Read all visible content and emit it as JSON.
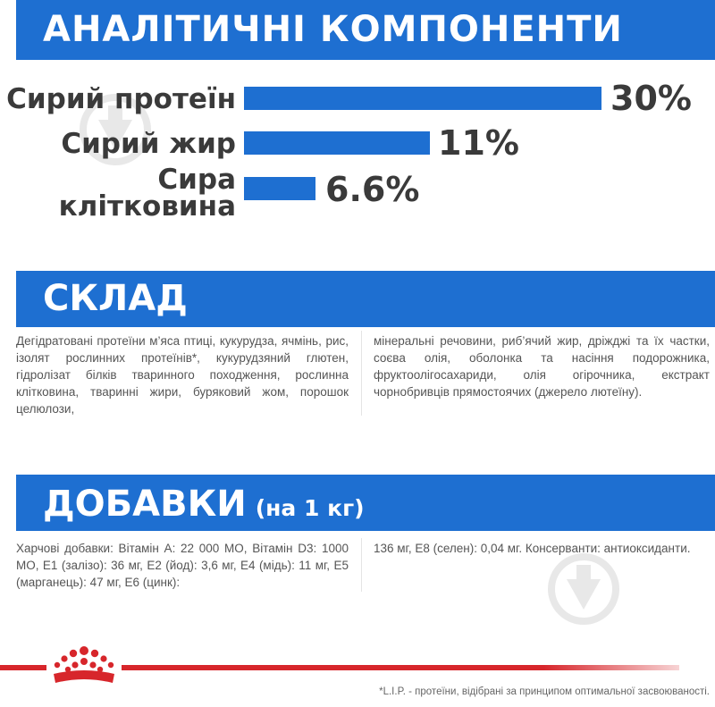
{
  "analytic": {
    "heading": "АНАЛІТИЧНІ КОМПОНЕНТИ",
    "items": [
      {
        "label_lines": [
          "Сирий протеїн"
        ],
        "value_text": "30%",
        "value": 30
      },
      {
        "label_lines": [
          "Сирий жир"
        ],
        "value_text": "11%",
        "value": 11
      },
      {
        "label_lines": [
          "Сира",
          "клітковина"
        ],
        "value_text": "6.6%",
        "value": 6.6
      }
    ]
  },
  "sklad": {
    "heading": "СКЛАД",
    "col1": "Дегідратовані протеїни м’яса птиці, кукурудза, ячмінь, рис, ізолят рослинних протеїнів*, кукурудзяний глютен, гідролізат білків тваринного походження, рослинна клітковина, тваринні жири, буряковий жом, порошок целюлози,",
    "col2": "мінеральні речовини, риб’ячий жир, дріжджі та їх частки, соєва олія, оболонка та насіння подорожника, фруктоолігосахариди, олія огірочника, екстракт чорнобривців прямостоячих (джерело лютеїну)."
  },
  "dobavky": {
    "heading": "ДОБАВКИ",
    "subheading": "(на 1 кг)",
    "col1": "Харчові добавки: Вітамін A: 22 000 МО, Вітамін D3: 1000 МО, E1 (залізо): 36 мг, E2 (йод): 3,6 мг, E4 (мідь): 11 мг, E5 (марганець): 47 мг, E6 (цинк):",
    "col2": "136 мг, E8 (селен): 0,04 мг. Консерванти: антиоксиданти."
  },
  "footnote": "*L.I.P. - протеїни, відібрані за принципом оптимальної засвоюваності.",
  "colors": {
    "accent": "#1e6fd1",
    "brand_red": "#d7262b",
    "text": "#3a3a3a"
  },
  "icons": [
    "watermark-logo-icon",
    "royal-canin-crown-icon"
  ]
}
